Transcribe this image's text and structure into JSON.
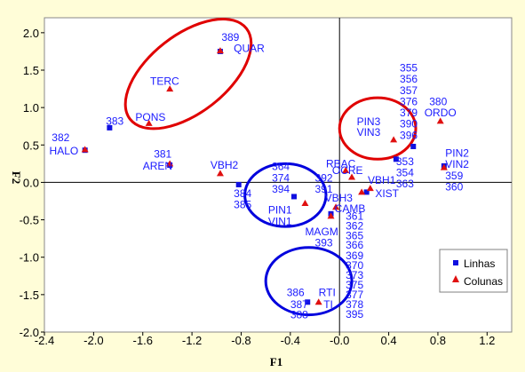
{
  "chart_data": {
    "type": "scatter",
    "title": "",
    "xlabel": "F1",
    "ylabel": "F2",
    "xlim": [
      -2.4,
      1.4
    ],
    "ylim": [
      -2.0,
      2.2
    ],
    "xticks": [
      -2.4,
      -2.0,
      -1.6,
      -1.2,
      -0.8,
      -0.4,
      0.0,
      0.4,
      0.8,
      1.2
    ],
    "yticks": [
      -2.0,
      -1.5,
      -1.0,
      -0.5,
      0.0,
      0.5,
      1.0,
      1.5,
      2.0
    ],
    "tick_labels_x": [
      "-2.4",
      "-2.0",
      "-1.6",
      "-1.2",
      "-0.8",
      "-0.4",
      "-0.0",
      "0.4",
      "0.8",
      "1.2"
    ],
    "tick_labels_y": [
      "-2.0",
      "-1.5",
      "-1.0",
      "-0.5",
      "0.0",
      "0.5",
      "1.0",
      "1.5",
      "2.0"
    ],
    "grid": false,
    "legend_position": "bottom-right",
    "series": [
      {
        "name": "Linhas",
        "marker": "square",
        "color": "#1010e0",
        "points": [
          {
            "x": -0.97,
            "y": 1.75
          },
          {
            "x": -1.87,
            "y": 0.73
          },
          {
            "x": -2.07,
            "y": 0.43
          },
          {
            "x": -1.38,
            "y": 0.23
          },
          {
            "x": -0.82,
            "y": -0.03
          },
          {
            "x": -0.37,
            "y": -0.19
          },
          {
            "x": -0.07,
            "y": -0.42
          },
          {
            "x": -0.26,
            "y": -1.6
          },
          {
            "x": 0.46,
            "y": 0.31
          },
          {
            "x": 0.6,
            "y": 0.48
          },
          {
            "x": 0.85,
            "y": 0.22
          },
          {
            "x": 0.22,
            "y": -0.13
          }
        ]
      },
      {
        "name": "Colunas",
        "marker": "triangle",
        "color": "#e01010",
        "points": [
          {
            "x": -0.97,
            "y": 1.76
          },
          {
            "x": -1.38,
            "y": 1.25
          },
          {
            "x": -1.55,
            "y": 0.79
          },
          {
            "x": -2.07,
            "y": 0.44
          },
          {
            "x": -1.38,
            "y": 0.25
          },
          {
            "x": -0.97,
            "y": 0.12
          },
          {
            "x": -0.28,
            "y": -0.28
          },
          {
            "x": -0.03,
            "y": -0.33
          },
          {
            "x": 0.05,
            "y": 0.16
          },
          {
            "x": 0.1,
            "y": 0.07
          },
          {
            "x": 0.25,
            "y": -0.08
          },
          {
            "x": -0.07,
            "y": -0.45
          },
          {
            "x": -0.17,
            "y": -1.6
          },
          {
            "x": 0.44,
            "y": 0.57
          },
          {
            "x": 0.82,
            "y": 0.82
          },
          {
            "x": 0.85,
            "y": 0.2
          },
          {
            "x": 0.18,
            "y": -0.13
          }
        ]
      }
    ],
    "annotations": [
      {
        "text": "389",
        "x": -0.96,
        "y": 1.94
      },
      {
        "text": "QUAR",
        "x": -0.86,
        "y": 1.79
      },
      {
        "text": "TERC",
        "x": -1.54,
        "y": 1.35
      },
      {
        "text": "383",
        "x": -1.9,
        "y": 0.82
      },
      {
        "text": "PONS",
        "x": -1.66,
        "y": 0.87
      },
      {
        "text": "382",
        "x": -2.34,
        "y": 0.6
      },
      {
        "text": "HALO",
        "x": -2.36,
        "y": 0.42
      },
      {
        "text": "381",
        "x": -1.51,
        "y": 0.38
      },
      {
        "text": "AREN",
        "x": -1.6,
        "y": 0.22
      },
      {
        "text": "VBH2",
        "x": -1.05,
        "y": 0.23
      },
      {
        "text": "364",
        "x": -0.55,
        "y": 0.21
      },
      {
        "text": "374",
        "x": -0.55,
        "y": 0.06
      },
      {
        "text": "394",
        "x": -0.55,
        "y": -0.09
      },
      {
        "text": "384",
        "x": -0.86,
        "y": -0.15
      },
      {
        "text": "385",
        "x": -0.86,
        "y": -0.3
      },
      {
        "text": "RBAC",
        "x": -0.11,
        "y": 0.25
      },
      {
        "text": "392",
        "x": -0.2,
        "y": 0.06
      },
      {
        "text": "391",
        "x": -0.2,
        "y": -0.09
      },
      {
        "text": "OCRE",
        "x": -0.06,
        "y": 0.16
      },
      {
        "text": "VBH1",
        "x": 0.23,
        "y": 0.03
      },
      {
        "text": "XIST",
        "x": 0.29,
        "y": -0.15
      },
      {
        "text": "VBH3",
        "x": -0.12,
        "y": -0.21
      },
      {
        "text": "PIN1",
        "x": -0.58,
        "y": -0.37
      },
      {
        "text": "VIN1",
        "x": -0.58,
        "y": -0.52
      },
      {
        "text": "CAMB",
        "x": -0.04,
        "y": -0.35
      },
      {
        "text": "361",
        "x": 0.05,
        "y": -0.45
      },
      {
        "text": "362",
        "x": 0.05,
        "y": -0.58
      },
      {
        "text": "365",
        "x": 0.05,
        "y": -0.71
      },
      {
        "text": "366",
        "x": 0.05,
        "y": -0.84
      },
      {
        "text": "369",
        "x": 0.05,
        "y": -0.98
      },
      {
        "text": "370",
        "x": 0.05,
        "y": -1.11
      },
      {
        "text": "373",
        "x": 0.05,
        "y": -1.24
      },
      {
        "text": "375",
        "x": 0.05,
        "y": -1.37
      },
      {
        "text": "377",
        "x": 0.05,
        "y": -1.5
      },
      {
        "text": "378",
        "x": 0.05,
        "y": -1.63
      },
      {
        "text": "395",
        "x": 0.05,
        "y": -1.76
      },
      {
        "text": "MAGM",
        "x": -0.28,
        "y": -0.66
      },
      {
        "text": "393",
        "x": -0.2,
        "y": -0.81
      },
      {
        "text": "386",
        "x": -0.43,
        "y": -1.47
      },
      {
        "text": "RTI",
        "x": -0.17,
        "y": -1.47
      },
      {
        "text": "387",
        "x": -0.4,
        "y": -1.63
      },
      {
        "text": "TI",
        "x": -0.13,
        "y": -1.63
      },
      {
        "text": "388",
        "x": -0.4,
        "y": -1.77
      },
      {
        "text": "355",
        "x": 0.49,
        "y": 1.53
      },
      {
        "text": "356",
        "x": 0.49,
        "y": 1.38
      },
      {
        "text": "357",
        "x": 0.49,
        "y": 1.23
      },
      {
        "text": "376",
        "x": 0.49,
        "y": 1.08
      },
      {
        "text": "379",
        "x": 0.49,
        "y": 0.93
      },
      {
        "text": "390",
        "x": 0.49,
        "y": 0.78
      },
      {
        "text": "396",
        "x": 0.49,
        "y": 0.63
      },
      {
        "text": "PIN3",
        "x": 0.14,
        "y": 0.81
      },
      {
        "text": "VIN3",
        "x": 0.14,
        "y": 0.67
      },
      {
        "text": "380",
        "x": 0.73,
        "y": 1.08
      },
      {
        "text": "ORDO",
        "x": 0.69,
        "y": 0.93
      },
      {
        "text": "353",
        "x": 0.46,
        "y": 0.28
      },
      {
        "text": "354",
        "x": 0.46,
        "y": 0.13
      },
      {
        "text": "363",
        "x": 0.46,
        "y": -0.02
      },
      {
        "text": "PIN2",
        "x": 0.86,
        "y": 0.39
      },
      {
        "text": "VIN2",
        "x": 0.86,
        "y": 0.24
      },
      {
        "text": "359",
        "x": 0.86,
        "y": 0.09
      },
      {
        "text": "360",
        "x": 0.86,
        "y": -0.06
      }
    ],
    "circles": [
      {
        "cx": -1.23,
        "cy": 1.45,
        "rx": 0.6,
        "ry": 0.52,
        "rot": -38
      },
      {
        "cx": 0.31,
        "cy": 0.72,
        "rx": 0.31,
        "ry": 0.41,
        "rot": 0
      },
      {
        "cx": -0.44,
        "cy": -0.17,
        "rx": 0.33,
        "ry": 0.42,
        "rot": 0
      },
      {
        "cx": -0.25,
        "cy": -1.32,
        "rx": 0.35,
        "ry": 0.45,
        "rot": 0
      }
    ]
  }
}
